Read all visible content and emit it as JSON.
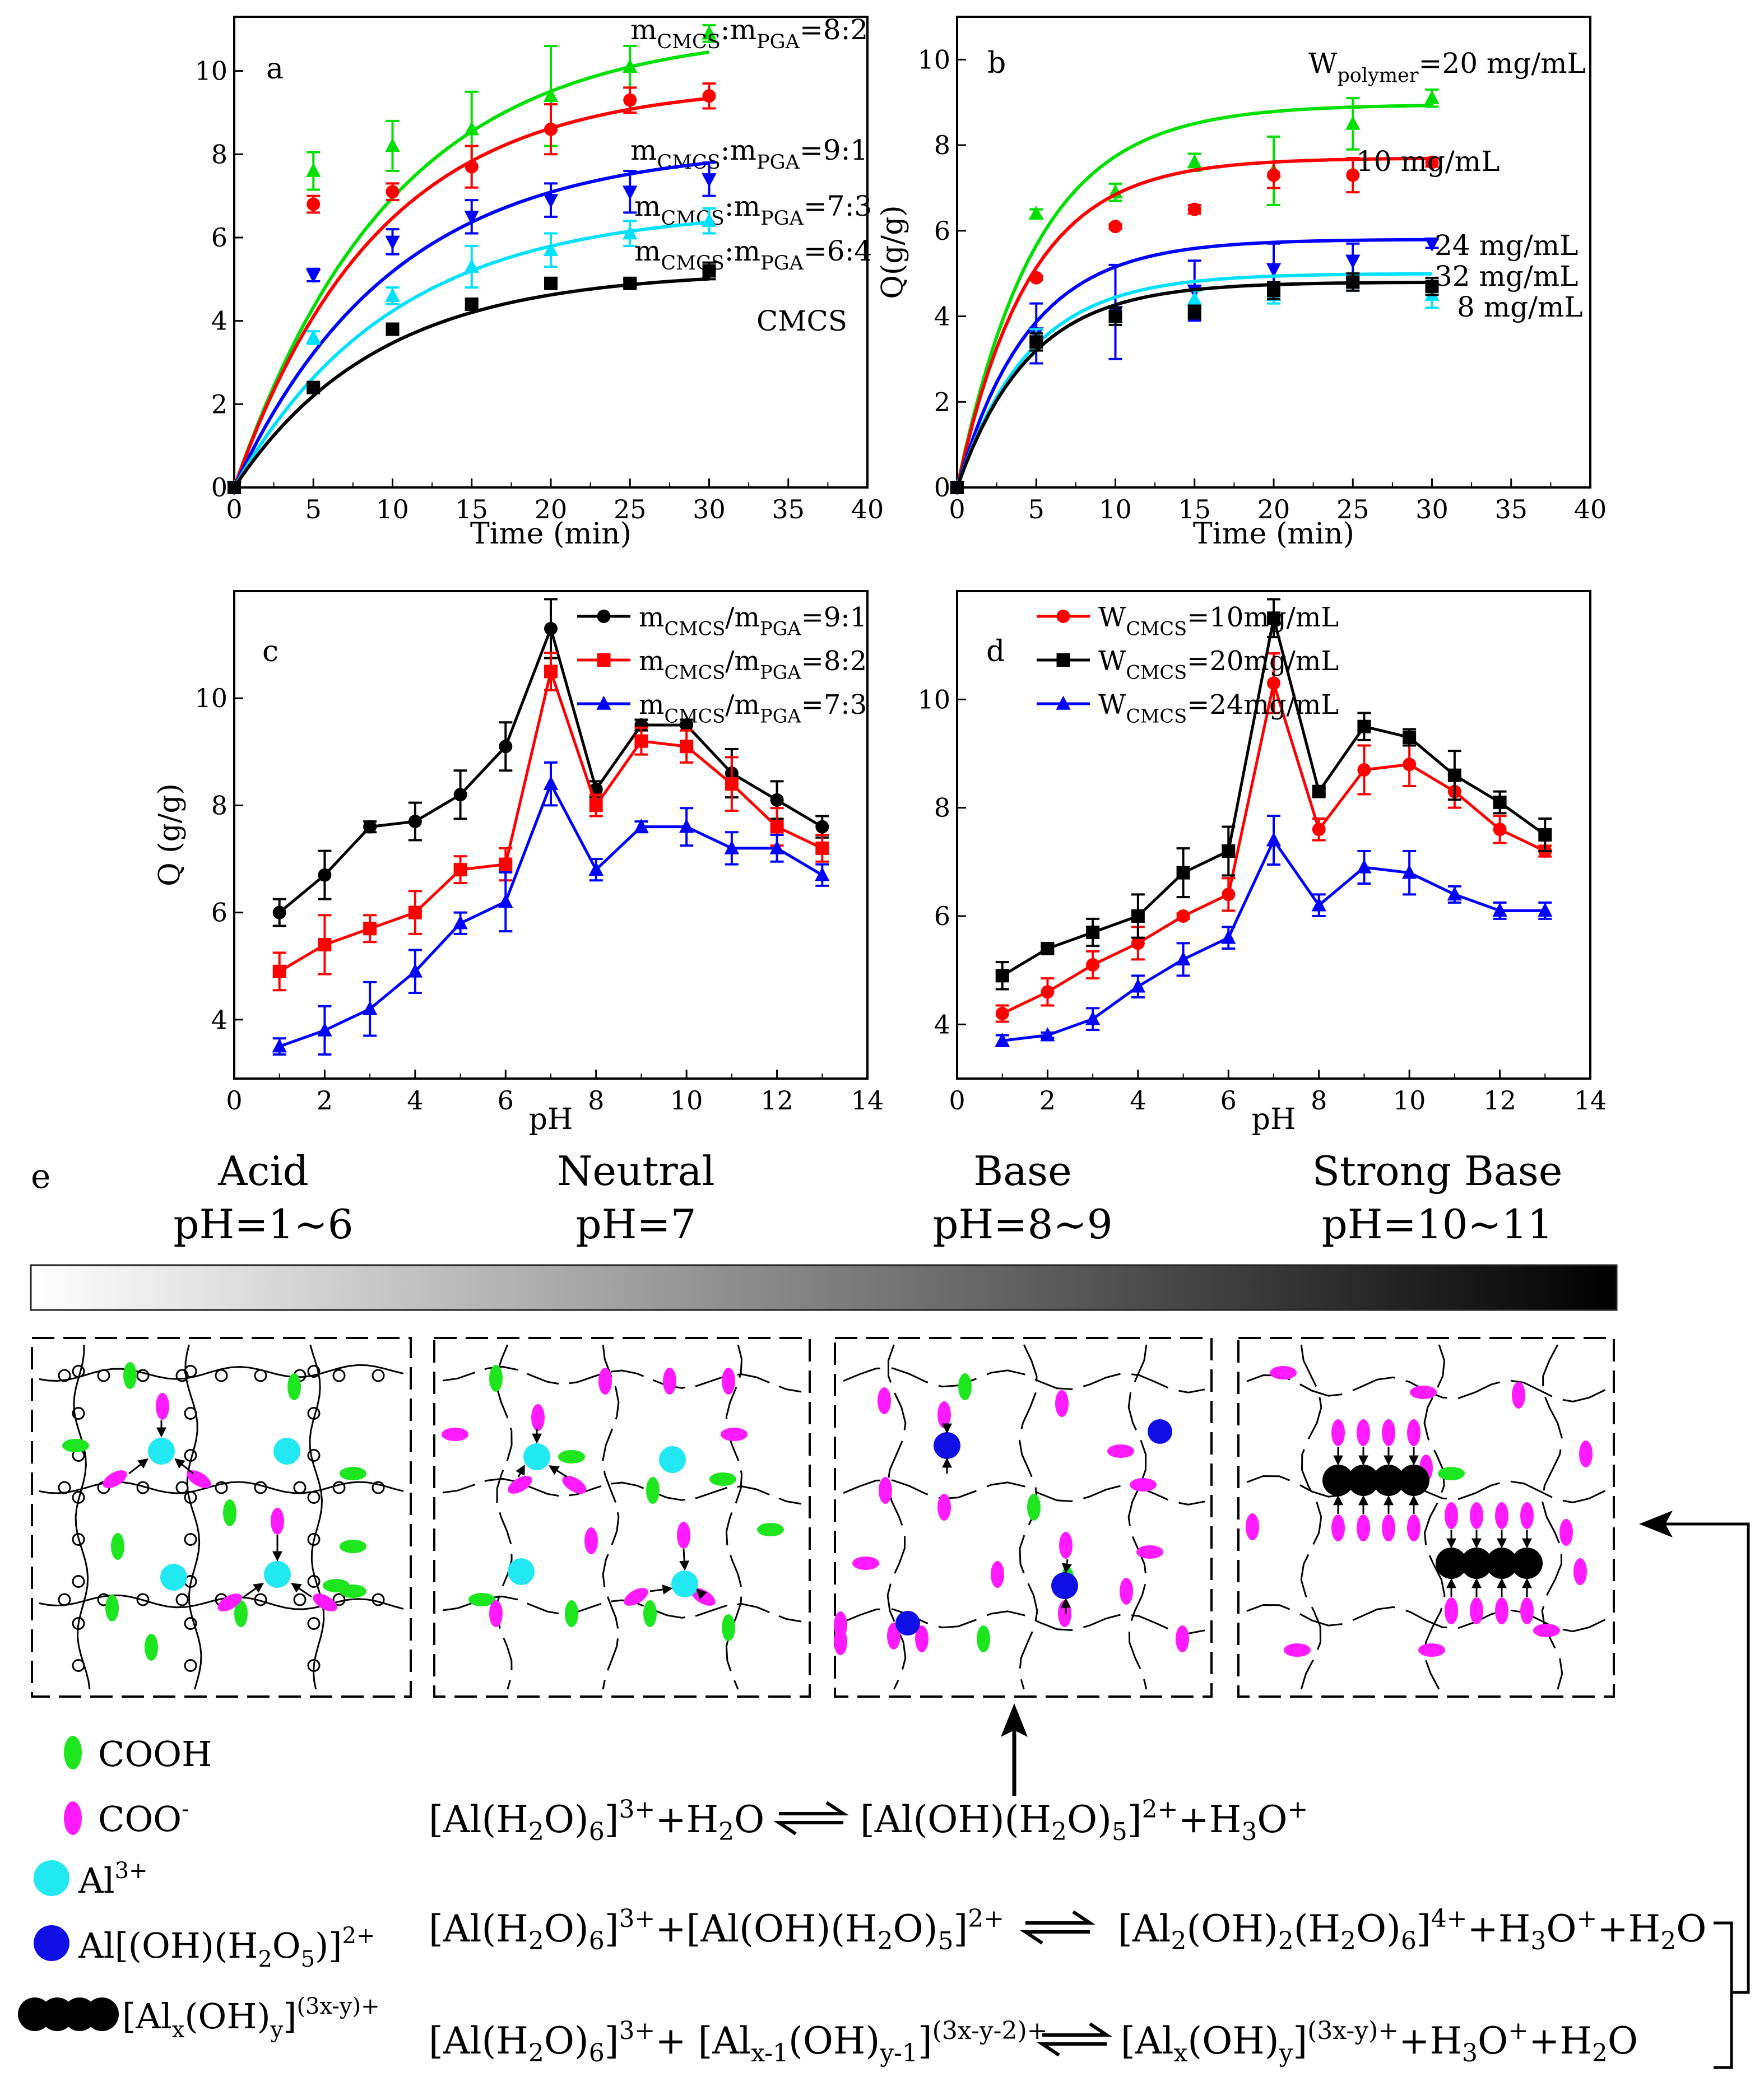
{
  "chart_data": [
    {
      "id": "a",
      "type": "scatter",
      "panel_label": "a",
      "xlabel": "Time (min)",
      "ylabel": "",
      "xlim": [
        0,
        40
      ],
      "ylim": [
        0,
        11.3
      ],
      "xticks": [
        0,
        5,
        10,
        15,
        20,
        25,
        30,
        35,
        40
      ],
      "yticks": [
        0,
        2,
        4,
        6,
        8,
        10
      ],
      "x": [
        0,
        5,
        10,
        15,
        20,
        25,
        30
      ],
      "series": [
        {
          "name": "8:2",
          "color": "#00e000",
          "marker": "triangle-up",
          "values": [
            0,
            7.6,
            8.2,
            8.6,
            9.4,
            10.1,
            10.9
          ],
          "errors": [
            0,
            0.45,
            0.6,
            0.9,
            1.2,
            0.5,
            0.2
          ],
          "fit": {
            "ymax": 11.0,
            "k": 0.1
          },
          "label": {
            "main": "m",
            "sub1": "CMCS",
            "mid": ":m",
            "sub2": "PGA",
            "tail": "=8:2"
          }
        },
        {
          "name": "9:1",
          "color": "#ff0000",
          "marker": "circle",
          "values": [
            0,
            6.8,
            7.1,
            7.7,
            8.6,
            9.3,
            9.4
          ],
          "errors": [
            0,
            0.2,
            0.2,
            0.5,
            0.6,
            0.3,
            0.3
          ],
          "fit": {
            "ymax": 9.7,
            "k": 0.11
          },
          "label": {
            "main": "m",
            "sub1": "CMCS",
            "mid": ":m",
            "sub2": "PGA",
            "tail": "=9:1"
          }
        },
        {
          "name": "7:3",
          "color": "#0000ff",
          "marker": "triangle-down",
          "values": [
            0,
            5.1,
            5.9,
            6.5,
            6.9,
            7.1,
            7.4
          ],
          "errors": [
            0,
            0.15,
            0.3,
            0.4,
            0.4,
            0.5,
            0.4
          ],
          "fit": {
            "ymax": 8.2,
            "k": 0.1
          },
          "label": {
            "main": "m",
            "sub1": "CMCS",
            "mid": ":m",
            "sub2": "PGA",
            "tail": "=7:3"
          }
        },
        {
          "name": "6:4",
          "color": "#00e0ff",
          "marker": "triangle-up",
          "values": [
            0,
            3.6,
            4.6,
            5.3,
            5.7,
            6.1,
            6.4
          ],
          "errors": [
            0,
            0.15,
            0.2,
            0.5,
            0.4,
            0.3,
            0.3
          ],
          "fit": {
            "ymax": 6.7,
            "k": 0.1
          },
          "label": {
            "main": "m",
            "sub1": "CMCS",
            "mid": ":m",
            "sub2": "PGA",
            "tail": "=6:4"
          }
        },
        {
          "name": "CMCS",
          "color": "#000000",
          "marker": "square",
          "values": [
            0,
            2.4,
            3.8,
            4.4,
            4.9,
            4.9,
            5.2
          ],
          "errors": [
            0,
            0.08,
            0.1,
            0.1,
            0.1,
            0.1,
            0.2
          ],
          "fit": {
            "ymax": 5.2,
            "k": 0.11
          },
          "label": {
            "main": "CMCS",
            "sub1": "",
            "mid": "",
            "sub2": "",
            "tail": ""
          }
        }
      ]
    },
    {
      "id": "b",
      "type": "scatter",
      "panel_label": "b",
      "xlabel": "Time (min)",
      "ylabel": "Q(g/g)",
      "xlim": [
        0,
        40
      ],
      "ylim": [
        0,
        11.0
      ],
      "xticks": [
        0,
        5,
        10,
        15,
        20,
        25,
        30,
        35,
        40
      ],
      "yticks": [
        0,
        2,
        4,
        6,
        8,
        10
      ],
      "x": [
        0,
        5,
        10,
        15,
        20,
        25,
        30
      ],
      "series": [
        {
          "name": "20 mg/mL",
          "color": "#00e000",
          "marker": "triangle-up",
          "values": [
            0,
            6.4,
            6.9,
            7.6,
            7.4,
            8.5,
            9.1
          ],
          "errors": [
            0,
            0.1,
            0.2,
            0.2,
            0.8,
            0.6,
            0.2
          ],
          "fit": {
            "ymax": 8.95,
            "k": 0.2
          },
          "label": {
            "main": "W",
            "sub1": "polymer",
            "mid": "",
            "sub2": "",
            "tail": "=20 mg/mL"
          }
        },
        {
          "name": "10 mg/mL",
          "color": "#ff0000",
          "marker": "circle",
          "values": [
            0,
            4.9,
            6.1,
            6.5,
            7.3,
            7.3,
            7.6
          ],
          "errors": [
            0,
            0.05,
            0.05,
            0.1,
            0.3,
            0.4,
            0.1
          ],
          "fit": {
            "ymax": 7.7,
            "k": 0.22
          },
          "label": {
            "main": "10 mg/mL",
            "sub1": "",
            "mid": "",
            "sub2": "",
            "tail": ""
          }
        },
        {
          "name": "24 mg/mL",
          "color": "#0000ff",
          "marker": "triangle-down",
          "values": [
            0,
            3.6,
            4.1,
            4.6,
            5.1,
            5.3,
            5.7
          ],
          "errors": [
            0,
            0.7,
            1.1,
            0.7,
            0.6,
            0.4,
            0.1
          ],
          "fit": {
            "ymax": 5.8,
            "k": 0.22
          },
          "label": {
            "main": "24 mg/mL",
            "sub1": "",
            "mid": "",
            "sub2": "",
            "tail": ""
          }
        },
        {
          "name": "32 mg/mL",
          "color": "#00e0ff",
          "marker": "triangle-up",
          "values": [
            0,
            3.5,
            4.0,
            4.4,
            4.5,
            4.8,
            4.5
          ],
          "errors": [
            0,
            0.2,
            0.2,
            0.2,
            0.2,
            0.2,
            0.3
          ],
          "fit": {
            "ymax": 5.0,
            "k": 0.22
          },
          "label": {
            "main": "32 mg/mL",
            "sub1": "",
            "mid": "",
            "sub2": "",
            "tail": ""
          }
        },
        {
          "name": "8 mg/mL",
          "color": "#000000",
          "marker": "square",
          "values": [
            0,
            3.4,
            4.0,
            4.1,
            4.6,
            4.8,
            4.7
          ],
          "errors": [
            0,
            0.2,
            0.2,
            0.15,
            0.2,
            0.2,
            0.2
          ],
          "fit": {
            "ymax": 4.8,
            "k": 0.22
          },
          "label": {
            "main": "8 mg/mL",
            "sub1": "",
            "mid": "",
            "sub2": "",
            "tail": ""
          }
        }
      ]
    },
    {
      "id": "c",
      "type": "line",
      "panel_label": "c",
      "xlabel": "pH",
      "ylabel": "Q (g/g)",
      "xlim": [
        0,
        14
      ],
      "ylim": [
        2.9,
        12.0
      ],
      "xticks": [
        0,
        2,
        4,
        6,
        8,
        10,
        12,
        14
      ],
      "yticks": [
        4,
        6,
        8,
        10
      ],
      "x": [
        1,
        2,
        3,
        4,
        5,
        6,
        7,
        8,
        9,
        10,
        11,
        12,
        13
      ],
      "series": [
        {
          "name": "9:1",
          "color": "#000000",
          "marker": "circle",
          "values": [
            6.0,
            6.7,
            7.6,
            7.7,
            8.2,
            9.1,
            11.3,
            8.3,
            9.5,
            9.5,
            8.6,
            8.1,
            7.6
          ],
          "errors": [
            0.25,
            0.45,
            0.1,
            0.35,
            0.45,
            0.45,
            0.55,
            0.15,
            0.1,
            0.1,
            0.45,
            0.35,
            0.2
          ],
          "label": {
            "main": "m",
            "sub1": "CMCS",
            "mid": "/m",
            "sub2": "PGA",
            "tail": "=9:1"
          }
        },
        {
          "name": "8:2",
          "color": "#ff0000",
          "marker": "square",
          "values": [
            4.9,
            5.4,
            5.7,
            6.0,
            6.8,
            6.9,
            10.5,
            8.0,
            9.2,
            9.1,
            8.4,
            7.6,
            7.2
          ],
          "errors": [
            0.35,
            0.55,
            0.25,
            0.4,
            0.25,
            0.3,
            0.35,
            0.2,
            0.25,
            0.3,
            0.5,
            0.35,
            0.25
          ],
          "label": {
            "main": "m",
            "sub1": "CMCS",
            "mid": "/m",
            "sub2": "PGA",
            "tail": "=8:2"
          }
        },
        {
          "name": "7:3",
          "color": "#0000ff",
          "marker": "triangle-up",
          "values": [
            3.5,
            3.8,
            4.2,
            4.9,
            5.8,
            6.2,
            8.4,
            6.8,
            7.6,
            7.6,
            7.2,
            7.2,
            6.7
          ],
          "errors": [
            0.15,
            0.45,
            0.5,
            0.4,
            0.2,
            0.55,
            0.4,
            0.2,
            0.1,
            0.35,
            0.3,
            0.25,
            0.2
          ],
          "label": {
            "main": "m",
            "sub1": "CMCS",
            "mid": "/m",
            "sub2": "PGA",
            "tail": "=7:3"
          }
        }
      ]
    },
    {
      "id": "d",
      "type": "line",
      "panel_label": "d",
      "xlabel": "pH",
      "ylabel": "",
      "xlim": [
        0,
        14
      ],
      "ylim": [
        3.0,
        12.0
      ],
      "xticks": [
        0,
        2,
        4,
        6,
        8,
        10,
        12,
        14
      ],
      "yticks": [
        4,
        6,
        8,
        10
      ],
      "x": [
        1,
        2,
        3,
        4,
        5,
        6,
        7,
        8,
        9,
        10,
        11,
        12,
        13
      ],
      "series": [
        {
          "name": "10mg/mL",
          "color": "#ff0000",
          "marker": "circle",
          "values": [
            4.2,
            4.6,
            5.1,
            5.5,
            6.0,
            6.4,
            10.3,
            7.6,
            8.7,
            8.8,
            8.3,
            7.6,
            7.2
          ],
          "errors": [
            0.15,
            0.25,
            0.25,
            0.3,
            0.05,
            0.3,
            0.55,
            0.2,
            0.45,
            0.4,
            0.3,
            0.25,
            0.1
          ],
          "label": {
            "main": "W",
            "sub1": "CMCS",
            "mid": "",
            "sub2": "",
            "tail": "=10mg/mL"
          }
        },
        {
          "name": "20mg/mL",
          "color": "#000000",
          "marker": "square",
          "values": [
            4.9,
            5.4,
            5.7,
            6.0,
            6.8,
            7.2,
            11.5,
            8.3,
            9.5,
            9.3,
            8.6,
            8.1,
            7.5
          ],
          "errors": [
            0.25,
            0.05,
            0.25,
            0.4,
            0.45,
            0.45,
            0.35,
            0.05,
            0.25,
            0.15,
            0.45,
            0.2,
            0.3
          ],
          "label": {
            "main": "W",
            "sub1": "CMCS",
            "mid": "",
            "sub2": "",
            "tail": "=20mg/mL"
          }
        },
        {
          "name": "24mg/mL",
          "color": "#0000ff",
          "marker": "triangle-up",
          "values": [
            3.7,
            3.8,
            4.1,
            4.7,
            5.2,
            5.6,
            7.4,
            6.2,
            6.9,
            6.8,
            6.4,
            6.1,
            6.1
          ],
          "errors": [
            0.1,
            0.05,
            0.2,
            0.2,
            0.3,
            0.2,
            0.45,
            0.2,
            0.3,
            0.4,
            0.15,
            0.15,
            0.15
          ],
          "label": {
            "main": "W",
            "sub1": "CMCS",
            "mid": "",
            "sub2": "",
            "tail": "=24mg/mL"
          }
        }
      ]
    }
  ],
  "schematic": {
    "panel_label": "e",
    "stages": [
      {
        "name": "Acid",
        "ph": "pH=1~6"
      },
      {
        "name": "Neutral",
        "ph": "pH=7"
      },
      {
        "name": "Base",
        "ph": "pH=8~9"
      },
      {
        "name": "Strong Base",
        "ph": "pH=10~11"
      }
    ],
    "colors": {
      "cooh": "#1ee61e",
      "coo": "#ff1aff",
      "al3": "#22e8f2",
      "aloh": "#1010e6",
      "alx": "#000000"
    },
    "legend": {
      "cooh": "COOH",
      "coo": "COO",
      "coo_sup": "-",
      "al3": "Al",
      "al3_sup": "3+",
      "aloh_a": "Al[(OH)(H",
      "aloh_sub": "2",
      "aloh_b": "O",
      "aloh_sub2": "5",
      "aloh_c": ")]",
      "aloh_sup": "2+",
      "alx_a": "[Al",
      "alx_sub1": "x",
      "alx_b": "(OH)",
      "alx_sub2": "y",
      "alx_c": "]",
      "alx_sup": "(3x-y)+"
    },
    "equations": {
      "eq1_left": [
        "[Al(H",
        "2",
        "O)",
        "6",
        "]",
        "3+",
        "+H",
        "",
        "2",
        "",
        "O"
      ],
      "eq1_right": [
        "[Al(OH)(H",
        "2",
        "O)",
        "5",
        "]",
        "2+",
        "+H",
        "3",
        "O",
        "+",
        ""
      ],
      "eq2_left": [
        "[Al(H",
        "2",
        "O)",
        "6",
        "]",
        "3+",
        "+[Al(OH)(H",
        "2",
        "O)",
        "5",
        "]",
        "2+"
      ],
      "eq2_right": [
        "[Al",
        "2",
        "(OH)",
        "2",
        "(H",
        "2",
        "O)",
        "6",
        "]",
        "4+",
        "+H",
        "3",
        "O",
        "+",
        "+H",
        "2",
        "O"
      ],
      "eq3_left": [
        "[Al(H",
        "2",
        "O)",
        "6",
        "]",
        "3+",
        "+ [Al",
        "x-1",
        "(OH)",
        "y-1",
        "]",
        "(3x-y-2)+"
      ],
      "eq3_right": [
        "[Al",
        "x",
        "(OH)",
        "y",
        "]",
        "(3x-y)+",
        "+H",
        "3",
        "O",
        "+",
        "+H",
        "2",
        "O"
      ]
    }
  }
}
